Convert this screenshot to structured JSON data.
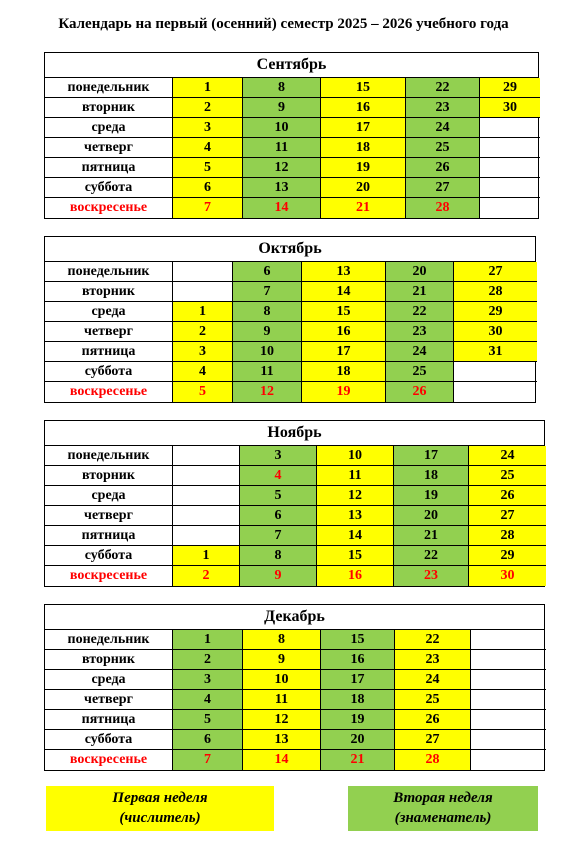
{
  "title": "Календарь на первый (осенний) семестр  2025 – 2026 учебного года",
  "colors": {
    "first_week": "#ffff00",
    "second_week": "#92d050",
    "weekend": "#ff0000"
  },
  "legend": {
    "first_line1": "Первая неделя",
    "first_line2": "(числитель)",
    "second_line1": "Вторая неделя",
    "second_line2": "(знаменатель)"
  },
  "months": [
    {
      "name": "Сентябрь",
      "rows": [
        {
          "day": "понедельник",
          "cells": [
            "1",
            "8",
            "15",
            "22",
            "29"
          ]
        },
        {
          "day": "вторник",
          "cells": [
            "2",
            "9",
            "16",
            "23",
            "30"
          ]
        },
        {
          "day": "среда",
          "cells": [
            "3",
            "10",
            "17",
            "24",
            ""
          ]
        },
        {
          "day": "четверг",
          "cells": [
            "4",
            "11",
            "18",
            "25",
            ""
          ]
        },
        {
          "day": "пятница",
          "cells": [
            "5",
            "12",
            "19",
            "26",
            ""
          ]
        },
        {
          "day": "суббота",
          "cells": [
            "6",
            "13",
            "20",
            "27",
            ""
          ]
        },
        {
          "day": "воскресенье",
          "cells": [
            "7",
            "14",
            "21",
            "28",
            ""
          ]
        }
      ]
    },
    {
      "name": "Октябрь",
      "rows": [
        {
          "day": "понедельник",
          "cells": [
            "",
            "6",
            "13",
            "20",
            "27"
          ]
        },
        {
          "day": "вторник",
          "cells": [
            "",
            "7",
            "14",
            "21",
            "28"
          ]
        },
        {
          "day": "среда",
          "cells": [
            "1",
            "8",
            "15",
            "22",
            "29"
          ]
        },
        {
          "day": "четверг",
          "cells": [
            "2",
            "9",
            "16",
            "23",
            "30"
          ]
        },
        {
          "day": "пятница",
          "cells": [
            "3",
            "10",
            "17",
            "24",
            "31"
          ]
        },
        {
          "day": "суббота",
          "cells": [
            "4",
            "11",
            "18",
            "25",
            ""
          ]
        },
        {
          "day": "воскресенье",
          "cells": [
            "5",
            "12",
            "19",
            "26",
            ""
          ]
        }
      ]
    },
    {
      "name": "Ноябрь",
      "rows": [
        {
          "day": "понедельник",
          "cells": [
            "",
            "3",
            "10",
            "17",
            "24"
          ]
        },
        {
          "day": "вторник",
          "cells": [
            "",
            "4",
            "11",
            "18",
            "25"
          ]
        },
        {
          "day": "среда",
          "cells": [
            "",
            "5",
            "12",
            "19",
            "26"
          ]
        },
        {
          "day": "четверг",
          "cells": [
            "",
            "6",
            "13",
            "20",
            "27"
          ]
        },
        {
          "day": "пятница",
          "cells": [
            "",
            "7",
            "14",
            "21",
            "28"
          ]
        },
        {
          "day": "суббота",
          "cells": [
            "1",
            "8",
            "15",
            "22",
            "29"
          ]
        },
        {
          "day": "воскресенье",
          "cells": [
            "2",
            "9",
            "16",
            "23",
            "30"
          ]
        }
      ]
    },
    {
      "name": "Декабрь",
      "rows": [
        {
          "day": "понедельник",
          "cells": [
            "1",
            "8",
            "15",
            "22",
            ""
          ]
        },
        {
          "day": "вторник",
          "cells": [
            "2",
            "9",
            "16",
            "23",
            ""
          ]
        },
        {
          "day": "среда",
          "cells": [
            "3",
            "10",
            "17",
            "24",
            ""
          ]
        },
        {
          "day": "четверг",
          "cells": [
            "4",
            "11",
            "18",
            "25",
            ""
          ]
        },
        {
          "day": "пятница",
          "cells": [
            "5",
            "12",
            "19",
            "26",
            ""
          ]
        },
        {
          "day": "суббота",
          "cells": [
            "6",
            "13",
            "20",
            "27",
            ""
          ]
        },
        {
          "day": "воскресенье",
          "cells": [
            "7",
            "14",
            "21",
            "28",
            ""
          ]
        }
      ]
    }
  ]
}
